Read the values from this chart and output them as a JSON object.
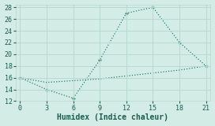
{
  "xlabel": "Humidex (Indice chaleur)",
  "x": [
    0,
    3,
    6,
    9,
    12,
    15,
    18,
    21
  ],
  "line1_y": [
    16,
    14,
    12.5,
    19,
    27,
    28,
    22,
    18
  ],
  "line2_y": [
    16,
    15.2,
    15.5,
    15.8,
    16.3,
    16.8,
    17.3,
    18
  ],
  "line_color": "#2a7d6e",
  "bg_color": "#d4ece6",
  "grid_color": "#b8d8d0",
  "xlim": [
    -0.5,
    21.5
  ],
  "ylim": [
    12,
    28.5
  ],
  "xticks": [
    0,
    3,
    6,
    9,
    12,
    15,
    18,
    21
  ],
  "yticks": [
    12,
    14,
    16,
    18,
    20,
    22,
    24,
    26,
    28
  ],
  "xlabel_fontsize": 7,
  "tick_fontsize": 6
}
